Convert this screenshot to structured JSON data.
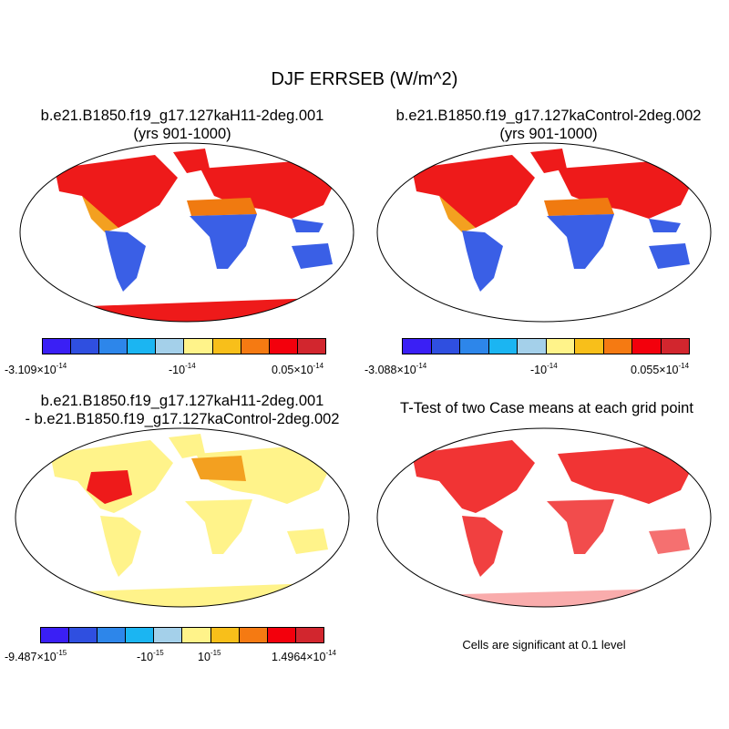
{
  "figure": {
    "title": "DJF ERRSEB (W/m^2)"
  },
  "colorbar_colors": [
    "#3a1ff5",
    "#2f4fe0",
    "#2d86ea",
    "#1bb5f2",
    "#a4d0ea",
    "#fff38a",
    "#f8bf1a",
    "#f57a12",
    "#f3000c",
    "#d2262e"
  ],
  "panels": [
    {
      "id": "case1",
      "title_line1": "b.e21.B1850.f19_g17.127kaH11-2deg.001",
      "title_line2": "(yrs 901-1000)",
      "colorbar_labels": [
        {
          "mantissa": "-3.109×10",
          "exponent": "-14"
        },
        {
          "mantissa": "-10",
          "exponent": "-14"
        },
        {
          "mantissa": "0.05×10",
          "exponent": "-14"
        }
      ]
    },
    {
      "id": "case2",
      "title_line1": "b.e21.B1850.f19_g17.127kaControl-2deg.002",
      "title_line2": "(yrs 901-1000)",
      "colorbar_labels": [
        {
          "mantissa": "-3.088×10",
          "exponent": "-14"
        },
        {
          "mantissa": "-10",
          "exponent": "-14"
        },
        {
          "mantissa": "0.055×10",
          "exponent": "-14"
        }
      ]
    },
    {
      "id": "diff",
      "title_line1": "b.e21.B1850.f19_g17.127kaH11-2deg.001",
      "title_line2": "- b.e21.B1850.f19_g17.127kaControl-2deg.002",
      "colorbar_labels": [
        {
          "mantissa": "-9.487×10",
          "exponent": "-15"
        },
        {
          "mantissa": "-10",
          "exponent": "-15"
        },
        {
          "mantissa": "10",
          "exponent": "-15"
        },
        {
          "mantissa": "1.4964×10",
          "exponent": "-14"
        }
      ]
    },
    {
      "id": "ttest",
      "title_line1": "T-Test of two Case means at each grid point",
      "note": "Cells are significant at 0.1 level"
    }
  ]
}
